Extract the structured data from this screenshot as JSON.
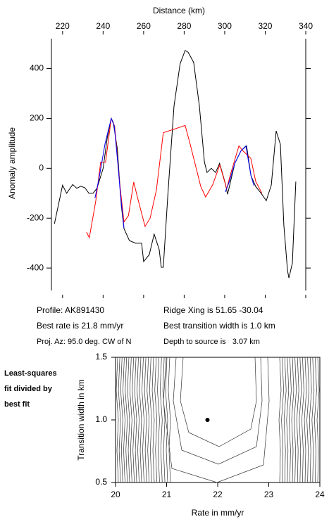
{
  "chart_data": [
    {
      "type": "line",
      "x_label": "Distance (km)",
      "y_label": "Anomaly amplitude",
      "xlim": [
        214.5,
        340
      ],
      "xticks": [
        220,
        240,
        260,
        280,
        300,
        320,
        340
      ],
      "ylim": [
        -490,
        520
      ],
      "yticks": [
        -400,
        -200,
        0,
        200,
        400
      ],
      "series": [
        {
          "color": "#000000",
          "x": [
            216,
            220,
            222,
            225,
            227,
            229,
            231,
            233,
            235,
            237,
            240,
            242,
            244,
            245,
            247,
            249,
            250.3,
            253,
            256,
            259,
            260,
            262.8,
            265.2,
            267.7,
            268.7,
            269.7,
            272,
            275,
            278,
            280.5,
            282,
            284.7,
            287.5,
            290,
            291.3,
            293.4,
            295.5,
            297.5,
            300.3,
            301.4,
            305,
            308,
            310.8,
            313,
            315.3,
            318,
            320.5,
            323,
            325.4,
            327.5,
            329.2,
            331,
            331.7,
            333.4,
            335.1
          ],
          "values": [
            -222,
            -68,
            -100,
            -65,
            -80,
            -72,
            -78,
            -100,
            -100,
            -80,
            0,
            120,
            200,
            185,
            80,
            -150,
            -242,
            -290,
            -300,
            -300,
            -374,
            -346,
            -264,
            -326,
            -397,
            -397,
            -100,
            250,
            420,
            473,
            465,
            425,
            250,
            25,
            -17,
            0,
            -17,
            20,
            -60,
            -104,
            20,
            70,
            90,
            -30,
            -73,
            -100,
            -130,
            -67,
            150,
            96,
            -228,
            -410,
            -440,
            -380,
            -53
          ]
        },
        {
          "color": "#ff0000",
          "x": [
            231.8,
            233.2,
            236.4,
            238.8,
            241.2,
            244,
            245.7,
            248.2,
            250.3,
            252.5,
            255.1,
            256.9,
            260.7,
            263.2,
            266.3,
            269.7,
            274.3,
            280.5,
            283,
            288.2,
            290.6,
            294.1,
            297.6,
            301,
            303,
            307,
            309,
            312.9,
            315.3,
            318.4
          ],
          "values": [
            -256,
            -278,
            -130,
            25,
            25,
            200,
            170,
            -60,
            -215,
            -190,
            -55,
            -115,
            -233,
            -200,
            -87,
            143,
            155,
            172,
            96,
            -73,
            -115,
            -65,
            14,
            -82,
            -20,
            90,
            70,
            40,
            -53,
            -100
          ]
        },
        {
          "color": "#0000ff",
          "x": [
            236,
            238,
            241,
            244,
            245.5,
            247.5,
            248.5,
            250.3,
            null,
            300.3,
            302,
            305,
            308,
            310.5,
            311.5,
            313,
            314.5
          ],
          "values": [
            -120,
            -40,
            100,
            200,
            170,
            0,
            -100,
            -240,
            null,
            -95,
            -60,
            20,
            70,
            90,
            40,
            -30,
            -70
          ]
        }
      ]
    },
    {
      "type": "scatter",
      "x_label": "Rate in mm/yr",
      "y_label": "Transition width in km",
      "xlim": [
        20,
        24
      ],
      "xticks": [
        20,
        21,
        22,
        23,
        24
      ],
      "ylim": [
        0.5,
        1.5
      ],
      "yticks": [
        0.5,
        {
          "value": 1,
          "label": "1.0"
        },
        1.5
      ],
      "x": [
        21.8
      ],
      "values": [
        1.0
      ],
      "color": "#000000"
    }
  ],
  "profile_info": {
    "left": [
      "Profile: AK891430",
      "Best rate is 21.8 mm/yr",
      "Proj. Az: 95.0 deg. CW of N"
    ],
    "right": [
      "Ridge Xing is 51.65 -30.04",
      "Best transition width is 1.0 km",
      "Depth to source is   3.07 km"
    ]
  },
  "side_note": [
    "Least-squares",
    "fit divided by",
    "best fit"
  ]
}
